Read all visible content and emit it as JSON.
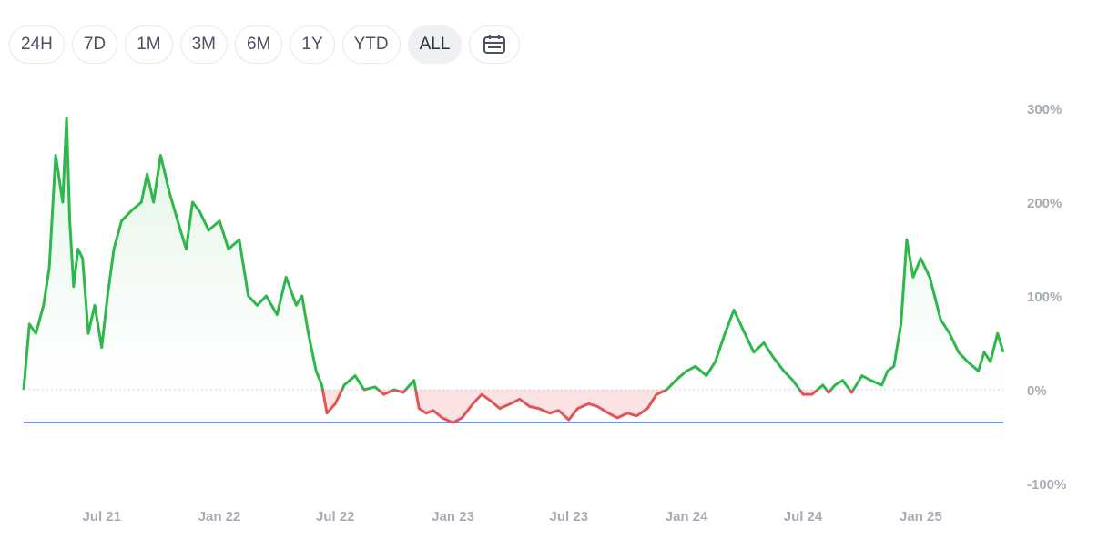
{
  "toolbar": {
    "ranges": [
      "24H",
      "7D",
      "1M",
      "3M",
      "6M",
      "1Y",
      "YTD",
      "ALL"
    ],
    "active_range": "ALL",
    "calendar_icon": "calendar-icon"
  },
  "colors": {
    "positive": "#2eb84b",
    "negative": "#e0555a",
    "positive_fill": "#e8f6ea",
    "negative_fill": "#fbe3e4",
    "baseline": "#3b6ff0",
    "zero_line": "#c9cdd3"
  },
  "chart_data": {
    "type": "line",
    "title": "",
    "xlabel": "",
    "ylabel": "",
    "x_ticks": [
      "Jul 21",
      "Jan 22",
      "Jul 22",
      "Jan 23",
      "Jul 23",
      "Jan 24",
      "Jul 24",
      "Jan 25"
    ],
    "y_ticks": [
      "300%",
      "200%",
      "100%",
      "0%",
      "-100%"
    ],
    "ylim": [
      -100,
      300
    ],
    "x_range": [
      "2021-03-01",
      "2025-05-10"
    ],
    "baseline_value": -35,
    "series": [
      {
        "x": [
          "2021-03-01",
          "2021-03-10",
          "2021-03-20",
          "2021-04-01",
          "2021-04-10",
          "2021-04-20",
          "2021-05-01",
          "2021-05-07",
          "2021-05-12",
          "2021-05-18",
          "2021-05-25",
          "2021-06-01",
          "2021-06-10",
          "2021-06-20",
          "2021-07-01",
          "2021-07-10",
          "2021-07-20",
          "2021-08-01",
          "2021-08-15",
          "2021-09-01",
          "2021-09-10",
          "2021-09-20",
          "2021-10-01",
          "2021-10-15",
          "2021-11-01",
          "2021-11-10",
          "2021-11-20",
          "2021-12-01",
          "2021-12-15",
          "2022-01-01",
          "2022-01-15",
          "2022-02-01",
          "2022-02-15",
          "2022-03-01",
          "2022-03-15",
          "2022-04-01",
          "2022-04-15",
          "2022-05-01",
          "2022-05-10",
          "2022-05-20",
          "2022-06-01",
          "2022-06-10",
          "2022-06-18",
          "2022-07-01",
          "2022-07-15",
          "2022-08-01",
          "2022-08-15",
          "2022-09-01",
          "2022-09-15",
          "2022-10-01",
          "2022-10-15",
          "2022-11-01",
          "2022-11-09",
          "2022-11-20",
          "2022-12-01",
          "2022-12-15",
          "2023-01-01",
          "2023-01-15",
          "2023-02-01",
          "2023-02-15",
          "2023-03-01",
          "2023-03-15",
          "2023-04-01",
          "2023-04-15",
          "2023-05-01",
          "2023-05-15",
          "2023-06-01",
          "2023-06-15",
          "2023-07-01",
          "2023-07-15",
          "2023-08-01",
          "2023-08-15",
          "2023-09-01",
          "2023-09-15",
          "2023-10-01",
          "2023-10-15",
          "2023-11-01",
          "2023-11-15",
          "2023-12-01",
          "2023-12-15",
          "2024-01-01",
          "2024-01-15",
          "2024-02-01",
          "2024-02-15",
          "2024-03-01",
          "2024-03-15",
          "2024-04-01",
          "2024-04-15",
          "2024-05-01",
          "2024-05-15",
          "2024-06-01",
          "2024-06-15",
          "2024-07-01",
          "2024-07-15",
          "2024-08-01",
          "2024-08-10",
          "2024-08-20",
          "2024-09-01",
          "2024-09-15",
          "2024-10-01",
          "2024-10-15",
          "2024-11-01",
          "2024-11-10",
          "2024-11-20",
          "2024-12-01",
          "2024-12-10",
          "2024-12-20",
          "2025-01-01",
          "2025-01-15",
          "2025-02-01",
          "2025-02-15",
          "2025-03-01",
          "2025-03-15",
          "2025-04-01",
          "2025-04-10",
          "2025-04-20",
          "2025-05-01",
          "2025-05-10"
        ],
        "y": [
          0,
          70,
          60,
          90,
          130,
          250,
          200,
          290,
          180,
          110,
          150,
          140,
          60,
          90,
          45,
          100,
          150,
          180,
          190,
          200,
          230,
          200,
          250,
          210,
          170,
          150,
          200,
          190,
          170,
          180,
          150,
          160,
          100,
          90,
          100,
          80,
          120,
          90,
          100,
          60,
          20,
          5,
          -25,
          -15,
          5,
          15,
          0,
          3,
          -5,
          0,
          -3,
          10,
          -20,
          -25,
          -22,
          -30,
          -35,
          -30,
          -15,
          -5,
          -12,
          -20,
          -15,
          -10,
          -18,
          -20,
          -25,
          -22,
          -32,
          -20,
          -15,
          -18,
          -25,
          -30,
          -25,
          -28,
          -20,
          -5,
          0,
          10,
          20,
          25,
          15,
          30,
          60,
          85,
          60,
          40,
          50,
          35,
          20,
          10,
          -5,
          -5,
          5,
          -3,
          5,
          10,
          -3,
          15,
          10,
          5,
          20,
          25,
          70,
          160,
          120,
          140,
          120,
          75,
          60,
          40,
          30,
          20,
          40,
          30,
          60,
          40
        ]
      }
    ]
  }
}
